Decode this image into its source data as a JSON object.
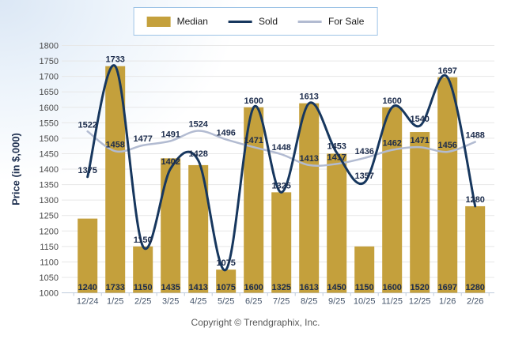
{
  "legend": {
    "border_color": "#9dc3e6",
    "items": [
      {
        "label": "Median",
        "swatch": "bar",
        "color": "#C4A03C"
      },
      {
        "label": "Sold",
        "swatch": "line",
        "color": "#17375E"
      },
      {
        "label": "For Sale",
        "swatch": "line",
        "color": "#B2BBD1"
      }
    ]
  },
  "copyright": "Copyright © Trendgraphix, Inc.",
  "chart_data": {
    "type": "combo",
    "title": "",
    "categories": [
      "12/24",
      "1/25",
      "2/25",
      "3/25",
      "4/25",
      "5/25",
      "6/25",
      "7/25",
      "8/25",
      "9/25",
      "10/25",
      "11/25",
      "12/25",
      "1/26",
      "2/26"
    ],
    "series": [
      {
        "name": "Median",
        "type": "bar",
        "color": "#C4A03C",
        "values": [
          1240,
          1733,
          1150,
          1435,
          1413,
          1075,
          1600,
          1325,
          1613,
          1450,
          1150,
          1600,
          1520,
          1697,
          1280
        ]
      },
      {
        "name": "Sold",
        "type": "line",
        "color": "#17375E",
        "values": [
          1375,
          1733,
          1150,
          1402,
          1428,
          1075,
          1600,
          1325,
          1613,
          1453,
          1357,
          1600,
          1540,
          1697,
          1280
        ]
      },
      {
        "name": "For Sale",
        "type": "line",
        "color": "#B2BBD1",
        "values": [
          1522,
          1458,
          1477,
          1491,
          1524,
          1496,
          1471,
          1448,
          1413,
          1417,
          1436,
          1462,
          1471,
          1456,
          1488
        ]
      }
    ],
    "xlabel": "",
    "ylabel": "Price (in $,000)",
    "ylim": [
      1000,
      1800
    ],
    "ytick_step": 50,
    "grid": true,
    "legend_position": "top",
    "colors": {
      "grid_line": "#e7e7e7",
      "axis_line": "#bfcbdc",
      "data_label": "#1b2b4b",
      "y_tick_label": "#4a4a4a",
      "x_tick_label": "#44546a"
    }
  }
}
